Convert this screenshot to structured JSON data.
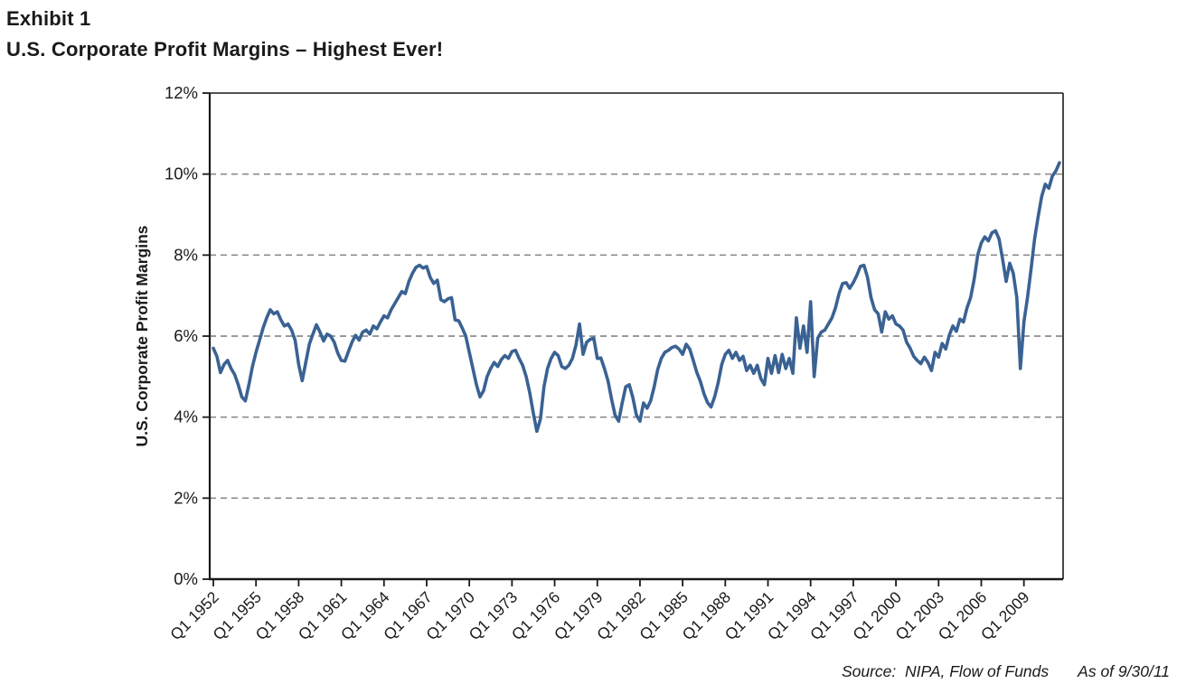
{
  "header": {
    "exhibit": "Exhibit 1",
    "title": "U.S. Corporate Profit Margins – Highest Ever!"
  },
  "footer": {
    "source": "Source:  NIPA, Flow of Funds",
    "as_of": "As of 9/30/11"
  },
  "chart_data": {
    "type": "line",
    "title": "U.S. Corporate Profit Margins – Highest Ever!",
    "xlabel": "",
    "ylabel": "U.S. Corporate Profit Margins",
    "unit": "percent",
    "ylim": [
      0,
      12
    ],
    "y_tick_step": 2,
    "y_tick_labels": [
      "0%",
      "2%",
      "4%",
      "6%",
      "8%",
      "10%",
      "12%"
    ],
    "x_tick_labels": [
      "Q1 1952",
      "Q1 1955",
      "Q1 1958",
      "Q1 1961",
      "Q1 1964",
      "Q1 1967",
      "Q1 1970",
      "Q1 1973",
      "Q1 1976",
      "Q1 1979",
      "Q1 1982",
      "Q1 1985",
      "Q1 1988",
      "Q1 1991",
      "Q1 1994",
      "Q1 1997",
      "Q1 2000",
      "Q1 2003",
      "Q1 2006",
      "Q1 2009"
    ],
    "x_tick_every_n_points": 12,
    "grid": "horizontal-dashed",
    "legend_position": "none",
    "colors": {
      "line": "#3A6293",
      "grid": "#8C8C8C",
      "axis": "#1A1A1A",
      "text": "#1A1A1A"
    },
    "series": [
      {
        "name": "U.S. Corporate Profit Margins",
        "start": "1952Q1",
        "end": "2011Q3",
        "frequency": "quarterly",
        "values": [
          5.7,
          5.5,
          5.1,
          5.3,
          5.4,
          5.2,
          5.05,
          4.8,
          4.5,
          4.4,
          4.8,
          5.25,
          5.6,
          5.9,
          6.2,
          6.45,
          6.65,
          6.55,
          6.6,
          6.4,
          6.25,
          6.3,
          6.15,
          5.9,
          5.3,
          4.9,
          5.35,
          5.8,
          6.05,
          6.28,
          6.1,
          5.88,
          6.05,
          6.0,
          5.85,
          5.58,
          5.4,
          5.38,
          5.62,
          5.85,
          6.02,
          5.9,
          6.1,
          6.15,
          6.05,
          6.25,
          6.18,
          6.35,
          6.5,
          6.45,
          6.65,
          6.8,
          6.95,
          7.1,
          7.05,
          7.35,
          7.55,
          7.7,
          7.75,
          7.68,
          7.72,
          7.45,
          7.3,
          7.38,
          6.9,
          6.85,
          6.92,
          6.95,
          6.4,
          6.38,
          6.2,
          6.0,
          5.6,
          5.2,
          4.8,
          4.5,
          4.65,
          5.0,
          5.2,
          5.35,
          5.25,
          5.42,
          5.52,
          5.45,
          5.62,
          5.65,
          5.45,
          5.28,
          5.0,
          4.6,
          4.1,
          3.65,
          3.95,
          4.75,
          5.2,
          5.45,
          5.6,
          5.52,
          5.25,
          5.2,
          5.28,
          5.45,
          5.78,
          6.3,
          5.55,
          5.85,
          5.92,
          5.95,
          5.45,
          5.46,
          5.2,
          4.9,
          4.45,
          4.05,
          3.9,
          4.35,
          4.75,
          4.8,
          4.48,
          4.05,
          3.9,
          4.35,
          4.22,
          4.4,
          4.75,
          5.18,
          5.45,
          5.6,
          5.65,
          5.72,
          5.75,
          5.68,
          5.55,
          5.8,
          5.68,
          5.4,
          5.1,
          4.88,
          4.58,
          4.36,
          4.25,
          4.5,
          4.85,
          5.3,
          5.55,
          5.65,
          5.45,
          5.6,
          5.4,
          5.5,
          5.15,
          5.28,
          5.08,
          5.28,
          4.95,
          4.8,
          5.45,
          5.08,
          5.52,
          5.1,
          5.55,
          5.2,
          5.45,
          5.08,
          6.45,
          5.7,
          6.25,
          5.6,
          6.85,
          5.0,
          5.95,
          6.1,
          6.15,
          6.3,
          6.45,
          6.7,
          7.05,
          7.3,
          7.32,
          7.18,
          7.32,
          7.5,
          7.72,
          7.75,
          7.45,
          6.95,
          6.65,
          6.55,
          6.1,
          6.6,
          6.42,
          6.5,
          6.3,
          6.25,
          6.15,
          5.85,
          5.7,
          5.5,
          5.4,
          5.32,
          5.48,
          5.35,
          5.15,
          5.6,
          5.48,
          5.82,
          5.68,
          6.02,
          6.25,
          6.12,
          6.42,
          6.35,
          6.7,
          6.95,
          7.4,
          8.0,
          8.3,
          8.45,
          8.35,
          8.55,
          8.6,
          8.4,
          7.9,
          7.35,
          7.8,
          7.55,
          6.95,
          5.2,
          6.35,
          6.95,
          7.65,
          8.4,
          8.95,
          9.45,
          9.75,
          9.65,
          9.95,
          10.08,
          10.28
        ]
      }
    ]
  }
}
